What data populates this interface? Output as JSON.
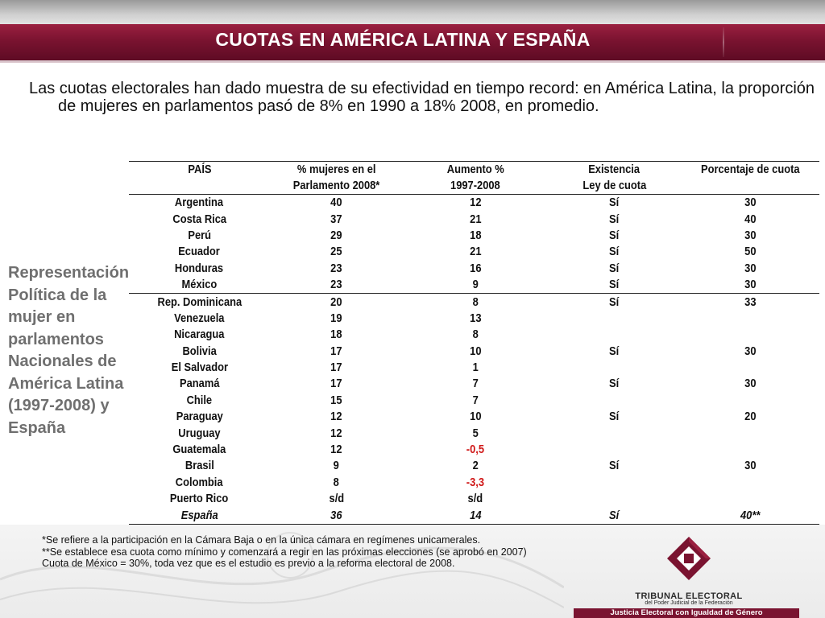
{
  "title": "CUOTAS EN AMÉRICA LATINA Y ESPAÑA",
  "intro": "Las cuotas electorales han dado muestra de su efectividad en tiempo record: en América Latina, la proporción de mujeres en parlamentos pasó de 8% en 1990 a 18% 2008, en promedio.",
  "side_caption": "Representación Política de la mujer en parlamentos Nacionales de América Latina (1997-2008) y España",
  "table": {
    "headers": [
      {
        "line1": "PAÍS",
        "line2": ""
      },
      {
        "line1": "% mujeres en el",
        "line2": "Parlamento 2008*"
      },
      {
        "line1": "Aumento %",
        "line2": "1997-2008"
      },
      {
        "line1": "Existencia",
        "line2": "Ley de cuota"
      },
      {
        "line1": "Porcentaje de cuota",
        "line2": ""
      }
    ],
    "rows": [
      {
        "pais": "Argentina",
        "mujeres": "40",
        "aumento": "12",
        "ley": "Sí",
        "cuota": "30"
      },
      {
        "pais": "Costa Rica",
        "mujeres": "37",
        "aumento": "21",
        "ley": "Sí",
        "cuota": "40"
      },
      {
        "pais": "Perú",
        "mujeres": "29",
        "aumento": "18",
        "ley": "Sí",
        "cuota": "30"
      },
      {
        "pais": "Ecuador",
        "mujeres": "25",
        "aumento": "21",
        "ley": "Sí",
        "cuota": "50"
      },
      {
        "pais": "Honduras",
        "mujeres": "23",
        "aumento": "16",
        "ley": "Sí",
        "cuota": "30"
      },
      {
        "pais": "México",
        "mujeres": "23",
        "aumento": "9",
        "ley": "Sí",
        "cuota": "30"
      },
      {
        "pais": "Rep. Dominicana",
        "mujeres": "20",
        "aumento": "8",
        "ley": "Sí",
        "cuota": "33"
      },
      {
        "pais": "Venezuela",
        "mujeres": "19",
        "aumento": "13",
        "ley": "",
        "cuota": ""
      },
      {
        "pais": "Nicaragua",
        "mujeres": "18",
        "aumento": "8",
        "ley": "",
        "cuota": ""
      },
      {
        "pais": "Bolivia",
        "mujeres": "17",
        "aumento": "10",
        "ley": "Sí",
        "cuota": "30"
      },
      {
        "pais": "El Salvador",
        "mujeres": "17",
        "aumento": "1",
        "ley": "",
        "cuota": ""
      },
      {
        "pais": "Panamá",
        "mujeres": "17",
        "aumento": "7",
        "ley": "Sí",
        "cuota": "30"
      },
      {
        "pais": "Chile",
        "mujeres": "15",
        "aumento": "7",
        "ley": "",
        "cuota": ""
      },
      {
        "pais": "Paraguay",
        "mujeres": "12",
        "aumento": "10",
        "ley": "Sí",
        "cuota": "20"
      },
      {
        "pais": "Uruguay",
        "mujeres": "12",
        "aumento": "5",
        "ley": "",
        "cuota": ""
      },
      {
        "pais": "Guatemala",
        "mujeres": "12",
        "aumento": "-0,5",
        "ley": "",
        "cuota": ""
      },
      {
        "pais": "Brasil",
        "mujeres": "9",
        "aumento": "2",
        "ley": "Sí",
        "cuota": "30"
      },
      {
        "pais": "Colombia",
        "mujeres": "8",
        "aumento": "-3,3",
        "ley": "",
        "cuota": ""
      },
      {
        "pais": "Puerto Rico",
        "mujeres": "s/d",
        "aumento": "s/d",
        "ley": "",
        "cuota": ""
      },
      {
        "pais": "España",
        "mujeres": "36",
        "aumento": "14",
        "ley": "Sí",
        "cuota": "40**"
      }
    ]
  },
  "footnotes": [
    "*Se refiere a la participación en la Cámara Baja o en la única cámara en regímenes unicamerales.",
    "**Se establece esa cuota como mínimo y comenzará a regir en las próximas elecciones (se aprobó en 2007)",
    "Cuota de México = 30%, toda vez que es el estudio es previo a la reforma electoral de 2008."
  ],
  "logo": {
    "name": "TRIBUNAL ELECTORAL",
    "subtitle": "del Poder Judicial de la Federación",
    "tagline": "Justicia Electoral con Igualdad de Género"
  },
  "colors": {
    "brand": "#7a1330",
    "negative": "#d01818",
    "caption": "#6f6f6f"
  }
}
